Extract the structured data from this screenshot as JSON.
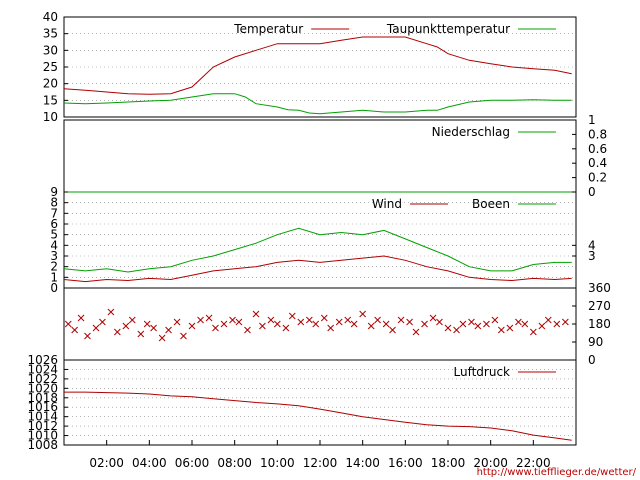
{
  "footer_url": "http://www.tiefflieger.de/wetter/",
  "chart_data": [
    {
      "type": "line",
      "panel": "temperature",
      "ylim": [
        10,
        40
      ],
      "left_ticks": [
        "10",
        "15",
        "20",
        "25",
        "30",
        "35",
        "40"
      ],
      "legend_placement": "top-right",
      "series": [
        {
          "name": "Temperatur",
          "color": "#b00000",
          "x": [
            0,
            1,
            2,
            3,
            4,
            5,
            6,
            6.5,
            7,
            8,
            9,
            10,
            11,
            12,
            13,
            14,
            15,
            16,
            17,
            17.5,
            18,
            19,
            20,
            21,
            22,
            23,
            23.8
          ],
          "values": [
            18.5,
            18,
            17.5,
            17,
            16.8,
            17,
            19,
            22,
            25,
            28,
            30,
            32,
            32,
            32,
            33,
            34,
            34,
            34,
            32,
            31,
            29,
            27,
            26,
            25,
            24.5,
            24,
            23
          ]
        },
        {
          "name": "Taupunkttemperatur",
          "color": "#00a000",
          "x": [
            0,
            1,
            2,
            3,
            4,
            5,
            6,
            7,
            8,
            8.5,
            9,
            10,
            10.5,
            11,
            11.5,
            12,
            13,
            14,
            15,
            16,
            17,
            17.5,
            18,
            19,
            20,
            21,
            22,
            23,
            23.8
          ],
          "values": [
            14.2,
            14,
            14.2,
            14.5,
            14.8,
            15,
            16,
            17,
            17,
            16,
            14,
            13,
            12.2,
            12,
            11.2,
            11,
            11.5,
            12,
            11.5,
            11.5,
            12,
            12,
            13,
            14.5,
            15,
            15,
            15.2,
            15,
            15
          ]
        }
      ]
    },
    {
      "type": "line",
      "panel": "precipitation",
      "ylim": [
        0,
        1
      ],
      "right_ticks": [
        "0",
        "0.2",
        "0.4",
        "0.6",
        "0.8",
        "1"
      ],
      "series": [
        {
          "name": "Niederschlag",
          "color": "#00a000",
          "x": [
            0,
            23.8
          ],
          "values": [
            0,
            0
          ]
        }
      ]
    },
    {
      "type": "line",
      "panel": "wind",
      "ylim": [
        0,
        9
      ],
      "left_ticks": [
        "0",
        "1",
        "2",
        "3",
        "4",
        "5",
        "6",
        "7",
        "8",
        "9"
      ],
      "right_ticks": [
        "3",
        "4"
      ],
      "series": [
        {
          "name": "Wind",
          "color": "#b00000",
          "x": [
            0,
            1,
            2,
            3,
            4,
            5,
            6,
            7,
            8,
            9,
            10,
            11,
            12,
            13,
            14,
            15,
            16,
            17,
            18,
            19,
            20,
            21,
            22,
            23,
            23.8
          ],
          "values": [
            0.8,
            0.6,
            0.8,
            0.7,
            0.9,
            0.8,
            1.2,
            1.6,
            1.8,
            2.0,
            2.4,
            2.6,
            2.4,
            2.6,
            2.8,
            3.0,
            2.6,
            2.0,
            1.6,
            1.0,
            0.8,
            0.7,
            0.9,
            0.8,
            0.9
          ]
        },
        {
          "name": "Boeen",
          "color": "#00a000",
          "x": [
            0,
            1,
            2,
            3,
            4,
            5,
            6,
            7,
            8,
            9,
            10,
            11,
            12,
            13,
            14,
            15,
            16,
            17,
            18,
            19,
            20,
            21,
            22,
            23,
            23.8
          ],
          "values": [
            1.8,
            1.6,
            1.8,
            1.5,
            1.8,
            2.0,
            2.6,
            3.0,
            3.6,
            4.2,
            5.0,
            5.6,
            5.0,
            5.2,
            5.0,
            5.4,
            4.6,
            3.8,
            3.0,
            2.0,
            1.6,
            1.6,
            2.2,
            2.4,
            2.4
          ]
        }
      ]
    },
    {
      "type": "scatter",
      "panel": "wind_direction",
      "ylim": [
        0,
        360
      ],
      "right_ticks": [
        "0",
        "90",
        "180",
        "270",
        "360"
      ],
      "series": [
        {
          "name": "",
          "color": "#b00000",
          "x": [
            0.2,
            0.5,
            0.8,
            1.1,
            1.5,
            1.8,
            2.2,
            2.5,
            2.9,
            3.2,
            3.6,
            3.9,
            4.2,
            4.6,
            4.9,
            5.3,
            5.6,
            6.0,
            6.4,
            6.8,
            7.1,
            7.5,
            7.9,
            8.2,
            8.6,
            9.0,
            9.3,
            9.7,
            10.0,
            10.4,
            10.7,
            11.1,
            11.5,
            11.8,
            12.2,
            12.5,
            12.9,
            13.3,
            13.6,
            14.0,
            14.4,
            14.7,
            15.1,
            15.4,
            15.8,
            16.2,
            16.5,
            16.9,
            17.3,
            17.6,
            18.0,
            18.4,
            18.7,
            19.1,
            19.4,
            19.8,
            20.2,
            20.5,
            20.9,
            21.3,
            21.6,
            22.0,
            22.4,
            22.7,
            23.1,
            23.5
          ],
          "values": [
            180,
            150,
            210,
            120,
            160,
            190,
            240,
            140,
            170,
            200,
            130,
            180,
            160,
            110,
            150,
            190,
            120,
            170,
            200,
            210,
            160,
            180,
            200,
            190,
            150,
            230,
            170,
            200,
            180,
            160,
            220,
            190,
            200,
            180,
            210,
            160,
            190,
            200,
            180,
            230,
            170,
            200,
            180,
            150,
            200,
            190,
            140,
            180,
            210,
            190,
            160,
            150,
            180,
            190,
            170,
            180,
            200,
            150,
            160,
            190,
            180,
            140,
            170,
            200,
            180,
            190
          ]
        }
      ]
    },
    {
      "type": "line",
      "panel": "pressure",
      "ylim": [
        1008,
        1026
      ],
      "left_ticks": [
        "1008",
        "1010",
        "1012",
        "1014",
        "1016",
        "1018",
        "1020",
        "1022",
        "1024",
        "1026"
      ],
      "series": [
        {
          "name": "Luftdruck",
          "color": "#b00000",
          "x": [
            0,
            1,
            2,
            3,
            4,
            5,
            6,
            7,
            8,
            9,
            10,
            11,
            12,
            13,
            14,
            15,
            16,
            17,
            18,
            19,
            20,
            21,
            22,
            23,
            23.8
          ],
          "values": [
            1019.2,
            1019.2,
            1019.1,
            1019.0,
            1018.8,
            1018.4,
            1018.2,
            1017.8,
            1017.4,
            1017.0,
            1016.7,
            1016.3,
            1015.6,
            1014.8,
            1014.0,
            1013.4,
            1012.8,
            1012.3,
            1012.0,
            1011.9,
            1011.6,
            1011.0,
            1010.1,
            1009.5,
            1009.0
          ]
        }
      ]
    }
  ],
  "x_ticks": [
    "02:00",
    "04:00",
    "06:00",
    "08:00",
    "10:00",
    "12:00",
    "14:00",
    "16:00",
    "18:00",
    "20:00",
    "22:00"
  ],
  "x_tick_hours": [
    2,
    4,
    6,
    8,
    10,
    12,
    14,
    16,
    18,
    20,
    22
  ],
  "x_range": [
    0,
    24
  ]
}
